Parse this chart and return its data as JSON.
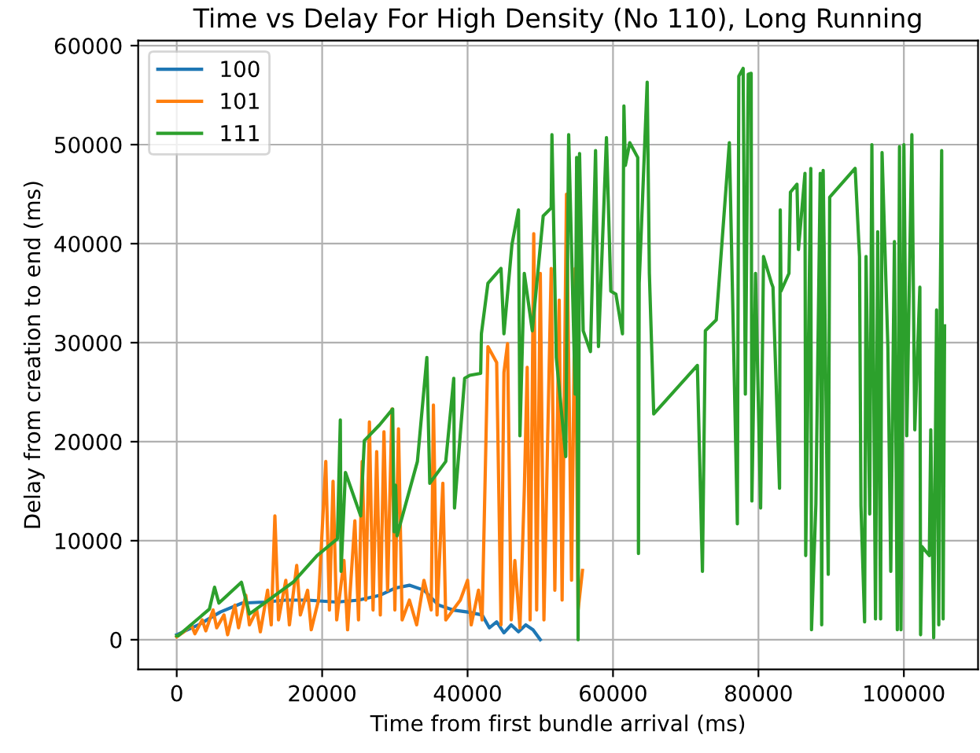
{
  "chart_data": {
    "type": "line",
    "title": "Time vs Delay For High Density (No 110), Long Running",
    "xlabel": "Time from first bundle arrival (ms)",
    "ylabel": "Delay from creation to end (ms)",
    "xlim": [
      -5300,
      110200
    ],
    "ylim": [
      -3000,
      60500
    ],
    "xticks": [
      0,
      20000,
      40000,
      60000,
      80000,
      100000
    ],
    "yticks": [
      0,
      10000,
      20000,
      30000,
      40000,
      50000,
      60000
    ],
    "grid": true,
    "legend": "top left",
    "series": [
      {
        "name": "100",
        "color": "#1f77b4",
        "x": [
          0,
          3000,
          6000,
          9000,
          12000,
          15000,
          18000,
          22000,
          25000,
          28000,
          30000,
          32000,
          34000,
          36000,
          38000,
          40000,
          42000,
          43000,
          44000,
          45000,
          46000,
          47000,
          48000,
          49000,
          50000
        ],
        "values": [
          500,
          1500,
          2800,
          3700,
          3800,
          4000,
          4000,
          3800,
          4000,
          4500,
          5200,
          5500,
          5000,
          3500,
          3000,
          2800,
          2500,
          1200,
          1800,
          700,
          1500,
          800,
          1500,
          1000,
          0
        ]
      },
      {
        "name": "101",
        "color": "#ff7f0e",
        "x": [
          0,
          1000,
          2000,
          2500,
          3500,
          4000,
          5000,
          5500,
          6500,
          7000,
          8000,
          8500,
          9500,
          10000,
          11000,
          11500,
          12500,
          13000,
          13500,
          14000,
          15000,
          15500,
          16500,
          17000,
          18000,
          18500,
          19500,
          20500,
          21000,
          21500,
          22000,
          23000,
          23500,
          24500,
          25000,
          25500,
          26000,
          26500,
          27000,
          27500,
          28000,
          28500,
          29000,
          29600,
          30000,
          30500,
          31000,
          32000,
          33000,
          34000,
          35000,
          35300,
          35800,
          36600,
          37000,
          38000,
          39000,
          40000,
          40500,
          41500,
          42000,
          42800,
          44000,
          44600,
          45000,
          45500,
          46000,
          46500,
          47200,
          47800,
          48200,
          48600,
          49100,
          49500,
          50000,
          50500,
          51500,
          52000,
          52600,
          53000,
          53600,
          54300,
          54800,
          55200,
          55800
        ],
        "values": [
          300,
          800,
          1500,
          600,
          2000,
          900,
          3000,
          1200,
          2500,
          500,
          3500,
          1200,
          4500,
          1500,
          3000,
          800,
          5000,
          1500,
          12500,
          2000,
          6000,
          1500,
          7500,
          2500,
          5000,
          1000,
          4000,
          18000,
          3000,
          16000,
          2000,
          8000,
          1000,
          12000,
          2000,
          18000,
          4000,
          22000,
          3000,
          19000,
          2500,
          21000,
          5000,
          23300,
          3000,
          21300,
          2000,
          4000,
          1500,
          6000,
          3000,
          23700,
          2500,
          15800,
          2000,
          3000,
          4000,
          6000,
          1500,
          5000,
          2000,
          29600,
          28000,
          1500,
          27000,
          29900,
          2000,
          8000,
          1200,
          15000,
          27500,
          2000,
          41000,
          3000,
          37000,
          2000,
          37500,
          5000,
          34300,
          4000,
          45000,
          6000,
          37500,
          3000,
          7000
        ]
      },
      {
        "name": "111",
        "color": "#2ca02c",
        "x": [
          0,
          200,
          4500,
          5200,
          5800,
          8900,
          10000,
          16000,
          19300,
          22100,
          22500,
          22600,
          23200,
          25300,
          25800,
          27900,
          29700,
          29900,
          30100,
          30300,
          33100,
          34400,
          34800,
          37000,
          38100,
          38200,
          39600,
          40300,
          41800,
          41900,
          42800,
          44600,
          45000,
          46100,
          47000,
          47200,
          47800,
          48900,
          50400,
          51500,
          51600,
          52200,
          53500,
          53900,
          54800,
          55000,
          55200,
          55400,
          55900,
          56900,
          57600,
          58000,
          59100,
          59700,
          60400,
          61300,
          61500,
          61700,
          62300,
          63400,
          63500,
          63600,
          64700,
          65000,
          65600,
          71600,
          72300,
          72700,
          74200,
          76000,
          77100,
          77300,
          77900,
          78200,
          78600,
          79000,
          79100,
          79600,
          80300,
          80700,
          81800,
          82000,
          82900,
          83000,
          83100,
          84200,
          84400,
          85300,
          85500,
          86400,
          86500,
          87200,
          87300,
          87900,
          88100,
          88500,
          88700,
          88900,
          89600,
          89800,
          93300,
          93900,
          94100,
          94600,
          94800,
          95300,
          95600,
          96100,
          96400,
          96800,
          97000,
          97800,
          98200,
          98700,
          99100,
          99400,
          99600,
          100000,
          100400,
          101100,
          101500,
          102200,
          102300,
          102500,
          103500,
          103700,
          104100,
          104500,
          104800,
          105000,
          105200,
          105400,
          105600
        ],
        "values": [
          400,
          400,
          3100,
          5300,
          3700,
          5800,
          2600,
          5800,
          8500,
          10200,
          22200,
          6900,
          16900,
          12500,
          20100,
          21700,
          23300,
          10900,
          15600,
          10500,
          18000,
          28500,
          15800,
          18000,
          26400,
          13300,
          26400,
          26700,
          26900,
          30900,
          36000,
          37500,
          30900,
          39900,
          43400,
          20600,
          37000,
          31200,
          42800,
          43600,
          51000,
          28500,
          18500,
          51000,
          24800,
          48700,
          0,
          49100,
          31200,
          29100,
          49400,
          29600,
          50700,
          35200,
          34900,
          30900,
          53900,
          47900,
          50200,
          48700,
          8700,
          36000,
          56300,
          37000,
          22800,
          27700,
          6900,
          31200,
          32300,
          50200,
          11700,
          56900,
          57700,
          24800,
          57100,
          57200,
          14000,
          37000,
          13300,
          38700,
          36000,
          35600,
          15300,
          43400,
          35200,
          37000,
          45200,
          46000,
          39400,
          47100,
          8500,
          47600,
          1000,
          13700,
          24800,
          47100,
          1500,
          47400,
          6600,
          44700,
          47600,
          38700,
          13500,
          1800,
          38700,
          12700,
          50000,
          2100,
          41200,
          2100,
          49200,
          29600,
          6900,
          40200,
          1000,
          49800,
          1000,
          50000,
          20600,
          51000,
          21200,
          35600,
          500,
          9400,
          8500,
          21200,
          200,
          33300,
          1500,
          33800,
          49400,
          2100,
          31700
        ]
      }
    ]
  }
}
